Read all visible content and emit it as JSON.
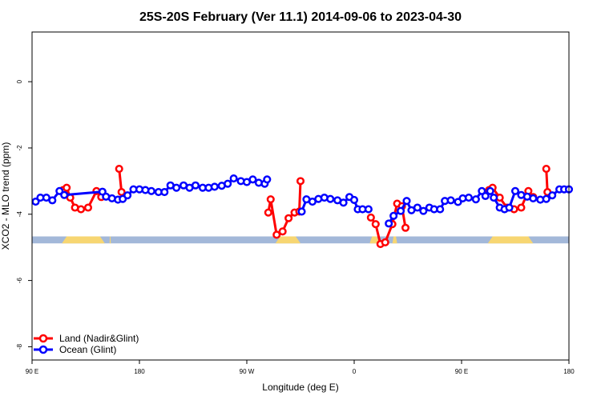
{
  "chart_data": {
    "type": "line",
    "title": "25S-20S February (Ver 11.1)   2014-09-06 to 2023-04-30",
    "xlabel": "Longitude (deg E)",
    "ylabel": "XCO2 - MLO trend (ppm)",
    "xlim": [
      90,
      540
    ],
    "ylim": [
      -8.4,
      1.5
    ],
    "x_ticks": [
      {
        "value": 90,
        "label": "90 E"
      },
      {
        "value": 180,
        "label": "180"
      },
      {
        "value": 270,
        "label": "90 W"
      },
      {
        "value": 360,
        "label": "0"
      },
      {
        "value": 450,
        "label": "90 E"
      },
      {
        "value": 540,
        "label": "180"
      }
    ],
    "y_ticks": [
      {
        "value": 0,
        "label": "0"
      },
      {
        "value": -2,
        "label": "-2"
      },
      {
        "value": -4,
        "label": "-4"
      },
      {
        "value": -6,
        "label": "-6"
      },
      {
        "value": -8,
        "label": "-8"
      }
    ],
    "grid": false,
    "legend_position": "bottom-left",
    "surface_band": {
      "y_top": -4.67,
      "y_bottom": -4.88,
      "ocean_color": "#a3b8d9",
      "land_color": "#f7d672",
      "land_segments": [
        [
          115,
          151
        ],
        [
          155,
          156
        ],
        [
          294,
          315
        ],
        [
          373,
          381
        ],
        [
          392,
          396
        ],
        [
          472,
          510
        ]
      ]
    },
    "series": [
      {
        "name": "Land (Nadir&Glint)",
        "color": "#ff0000",
        "segments": [
          {
            "x": [
              116,
              119,
              122,
              126,
              131,
              137,
              144,
              148
            ],
            "y": [
              -3.27,
              -3.2,
              -3.5,
              -3.8,
              -3.85,
              -3.8,
              -3.3,
              -3.48
            ]
          },
          {
            "x": [
              163,
              165
            ],
            "y": [
              -2.63,
              -3.33
            ]
          },
          {
            "x": [
              288,
              290,
              295,
              300,
              305,
              310
            ],
            "y": [
              -3.95,
              -3.55,
              -4.62,
              -4.52,
              -4.12,
              -3.95
            ]
          },
          {
            "x": [
              314,
              315
            ],
            "y": [
              -3.92,
              -3.0
            ]
          },
          {
            "x": [
              374,
              378,
              382,
              386,
              392,
              396,
              400,
              403
            ],
            "y": [
              -4.1,
              -4.3,
              -4.9,
              -4.85,
              -4.3,
              -3.68,
              -3.76,
              -4.41
            ]
          },
          {
            "x": [
              473,
              476,
              482,
              488,
              494,
              500,
              506,
              510
            ],
            "y": [
              -3.27,
              -3.2,
              -3.5,
              -3.8,
              -3.85,
              -3.8,
              -3.3,
              -3.48
            ]
          },
          {
            "x": [
              521,
              522
            ],
            "y": [
              -2.63,
              -3.33
            ]
          }
        ]
      },
      {
        "name": "Ocean (Glint)",
        "color": "#0000ff",
        "segments": [
          {
            "x": [
              93,
              97,
              102,
              107,
              113,
              117,
              149,
              152,
              157,
              162,
              166,
              170,
              175,
              180,
              185,
              190,
              196,
              201,
              206,
              211,
              217,
              222,
              227,
              233,
              238,
              243,
              249,
              254,
              259,
              265,
              270,
              275,
              280,
              285
            ],
            "y": [
              -3.62,
              -3.5,
              -3.5,
              -3.58,
              -3.3,
              -3.42,
              -3.32,
              -3.47,
              -3.52,
              -3.56,
              -3.54,
              -3.43,
              -3.25,
              -3.25,
              -3.27,
              -3.3,
              -3.33,
              -3.33,
              -3.13,
              -3.2,
              -3.13,
              -3.2,
              -3.13,
              -3.2,
              -3.2,
              -3.17,
              -3.14,
              -3.08,
              -2.92,
              -3.0,
              -3.03,
              -2.95,
              -3.05,
              -3.08
            ]
          },
          {
            "x": [
              287
            ],
            "y": [
              -2.95
            ]
          },
          {
            "x": [
              316,
              320,
              325,
              330,
              335,
              340,
              346,
              351,
              356,
              360,
              363,
              367,
              372
            ],
            "y": [
              -3.92,
              -3.55,
              -3.62,
              -3.54,
              -3.5,
              -3.54,
              -3.58,
              -3.65,
              -3.48,
              -3.57,
              -3.85,
              -3.85,
              -3.85
            ]
          },
          {
            "x": [
              389,
              393,
              399,
              404,
              408,
              413,
              418,
              423,
              427,
              432,
              436,
              441,
              447,
              451,
              456,
              462,
              467,
              470,
              474,
              477,
              482,
              486,
              490,
              495,
              500,
              505,
              510,
              516,
              521,
              526,
              532,
              536,
              540
            ],
            "y": [
              -4.28,
              -4.05,
              -3.9,
              -3.6,
              -3.88,
              -3.8,
              -3.9,
              -3.8,
              -3.85,
              -3.85,
              -3.6,
              -3.58,
              -3.63,
              -3.52,
              -3.5,
              -3.55,
              -3.3,
              -3.45,
              -3.3,
              -3.5,
              -3.8,
              -3.85,
              -3.8,
              -3.3,
              -3.42,
              -3.47,
              -3.52,
              -3.56,
              -3.54,
              -3.43,
              -3.25,
              -3.25,
              -3.25
            ]
          }
        ]
      }
    ]
  }
}
